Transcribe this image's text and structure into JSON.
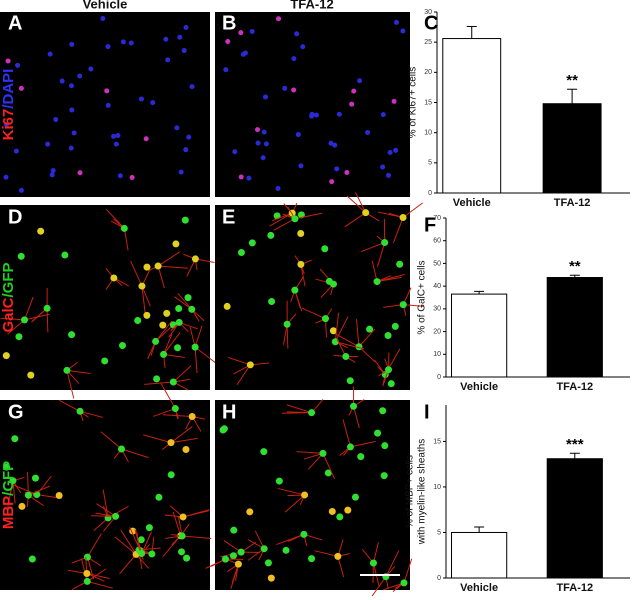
{
  "panels": {
    "headers": [
      "Vehicle",
      "TFA-12"
    ],
    "row_labels": [
      {
        "parts": [
          "Ki67",
          "/DAPI"
        ],
        "colors": [
          "#ff2020",
          "#3030ff"
        ]
      },
      {
        "parts": [
          "GalC",
          "/GFP"
        ],
        "colors": [
          "#ff2020",
          "#20d020"
        ]
      },
      {
        "parts": [
          "MBP",
          "/GFP"
        ],
        "colors": [
          "#ff2020",
          "#20d020"
        ]
      }
    ],
    "letters": [
      "A",
      "B",
      "C",
      "D",
      "E",
      "F",
      "G",
      "H",
      "I"
    ]
  },
  "chart_data": [
    {
      "type": "bar",
      "ylabel": "% of Ki67+ cells",
      "categories": [
        "Vehicle",
        "TFA-12"
      ],
      "values": [
        25.6,
        14.8
      ],
      "errors": [
        2.0,
        2.4
      ],
      "colors": [
        "#ffffff",
        "#000000"
      ],
      "ylim": [
        0,
        30
      ],
      "yticks": [
        0,
        5,
        10,
        15,
        20,
        25,
        30
      ],
      "annotation": "**"
    },
    {
      "type": "bar",
      "ylabel": "% of GalC+ cells",
      "categories": [
        "Vehicle",
        "TFA-12"
      ],
      "values": [
        36.5,
        43.8
      ],
      "errors": [
        1.2,
        1.0
      ],
      "colors": [
        "#ffffff",
        "#000000"
      ],
      "ylim": [
        0,
        70
      ],
      "yticks": [
        0,
        10,
        20,
        30,
        40,
        50,
        60,
        70
      ],
      "annotation": "**"
    },
    {
      "type": "bar",
      "ylabel": [
        "% of MBP+ cells",
        "with myelin-like sheaths"
      ],
      "categories": [
        "Vehicle",
        "TFA-12"
      ],
      "values": [
        5.0,
        13.1
      ],
      "errors": [
        0.6,
        0.6
      ],
      "colors": [
        "#ffffff",
        "#000000"
      ],
      "ylim": [
        0,
        19
      ],
      "yticks": [
        0,
        5,
        10,
        15
      ],
      "annotation": "***"
    }
  ]
}
